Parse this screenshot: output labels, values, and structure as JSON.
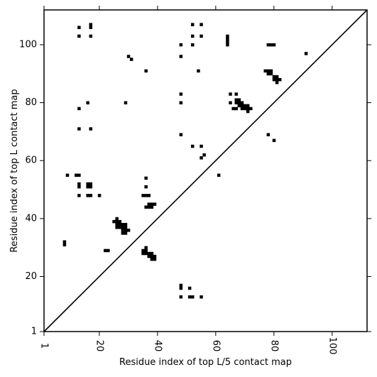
{
  "chart_data": {
    "type": "scatter",
    "title": "",
    "xlabel": "Residue index of top L/5 contact map",
    "ylabel": "Residue index of top L contact map",
    "xlim": [
      1,
      112
    ],
    "ylim": [
      1,
      112
    ],
    "x_ticks": [
      1,
      20,
      40,
      60,
      80,
      100
    ],
    "x_tick_labels": [
      "1",
      "20",
      "40",
      "60",
      "80",
      "100"
    ],
    "y_ticks": [
      1,
      20,
      40,
      60,
      80,
      100
    ],
    "y_tick_labels": [
      "1",
      "20",
      "40",
      "60",
      "80",
      "100"
    ],
    "grid": false,
    "marker": "square",
    "marker_color": "#000000",
    "diagonal_line": true,
    "series": [
      {
        "points": [
          [
            8,
            31
          ],
          [
            8,
            32
          ],
          [
            9,
            55
          ],
          [
            12,
            55
          ],
          [
            13,
            55
          ],
          [
            13,
            51
          ],
          [
            13,
            52
          ],
          [
            13,
            48
          ],
          [
            13,
            71
          ],
          [
            13,
            78
          ],
          [
            13,
            103
          ],
          [
            13,
            106
          ],
          [
            16,
            48
          ],
          [
            16,
            51
          ],
          [
            16,
            52
          ],
          [
            17,
            48
          ],
          [
            17,
            51
          ],
          [
            17,
            52
          ],
          [
            16,
            80
          ],
          [
            17,
            71
          ],
          [
            17,
            103
          ],
          [
            17,
            106
          ],
          [
            17,
            107
          ],
          [
            20,
            48
          ],
          [
            22,
            29
          ],
          [
            23,
            29
          ],
          [
            25,
            39
          ],
          [
            26,
            37
          ],
          [
            26,
            38
          ],
          [
            26,
            39
          ],
          [
            26,
            40
          ],
          [
            27,
            37
          ],
          [
            27,
            38
          ],
          [
            27,
            39
          ],
          [
            28,
            35
          ],
          [
            28,
            36
          ],
          [
            28,
            37
          ],
          [
            28,
            38
          ],
          [
            29,
            35
          ],
          [
            29,
            36
          ],
          [
            29,
            37
          ],
          [
            29,
            38
          ],
          [
            30,
            36
          ],
          [
            29,
            80
          ],
          [
            30,
            96
          ],
          [
            31,
            95
          ],
          [
            35,
            28
          ],
          [
            35,
            29
          ],
          [
            36,
            28
          ],
          [
            36,
            29
          ],
          [
            36,
            30
          ],
          [
            37,
            27
          ],
          [
            37,
            28
          ],
          [
            38,
            26
          ],
          [
            38,
            27
          ],
          [
            38,
            28
          ],
          [
            39,
            26
          ],
          [
            39,
            27
          ],
          [
            35,
            48
          ],
          [
            36,
            48
          ],
          [
            37,
            48
          ],
          [
            36,
            44
          ],
          [
            37,
            44
          ],
          [
            37,
            45
          ],
          [
            38,
            44
          ],
          [
            38,
            45
          ],
          [
            39,
            45
          ],
          [
            36,
            51
          ],
          [
            36,
            54
          ],
          [
            36,
            91
          ],
          [
            48,
            13
          ],
          [
            48,
            16
          ],
          [
            48,
            17
          ],
          [
            48,
            69
          ],
          [
            48,
            80
          ],
          [
            48,
            83
          ],
          [
            48,
            96
          ],
          [
            48,
            100
          ],
          [
            51,
            13
          ],
          [
            51,
            16
          ],
          [
            52,
            13
          ],
          [
            52,
            65
          ],
          [
            52,
            100
          ],
          [
            52,
            103
          ],
          [
            52,
            107
          ],
          [
            54,
            91
          ],
          [
            55,
            13
          ],
          [
            55,
            61
          ],
          [
            55,
            65
          ],
          [
            55,
            103
          ],
          [
            55,
            107
          ],
          [
            56,
            62
          ],
          [
            61,
            55
          ],
          [
            64,
            100
          ],
          [
            64,
            101
          ],
          [
            64,
            102
          ],
          [
            64,
            103
          ],
          [
            65,
            80
          ],
          [
            65,
            83
          ],
          [
            66,
            78
          ],
          [
            67,
            78
          ],
          [
            67,
            80
          ],
          [
            67,
            81
          ],
          [
            67,
            83
          ],
          [
            68,
            79
          ],
          [
            68,
            80
          ],
          [
            68,
            81
          ],
          [
            69,
            78
          ],
          [
            69,
            79
          ],
          [
            69,
            80
          ],
          [
            70,
            78
          ],
          [
            70,
            79
          ],
          [
            71,
            77
          ],
          [
            71,
            78
          ],
          [
            71,
            79
          ],
          [
            72,
            78
          ],
          [
            78,
            69
          ],
          [
            77,
            91
          ],
          [
            78,
            90
          ],
          [
            78,
            91
          ],
          [
            79,
            90
          ],
          [
            79,
            91
          ],
          [
            78,
            100
          ],
          [
            79,
            100
          ],
          [
            80,
            100
          ],
          [
            80,
            67
          ],
          [
            80,
            88
          ],
          [
            80,
            89
          ],
          [
            81,
            87
          ],
          [
            81,
            88
          ],
          [
            81,
            89
          ],
          [
            82,
            88
          ],
          [
            91,
            97
          ]
        ]
      }
    ]
  }
}
